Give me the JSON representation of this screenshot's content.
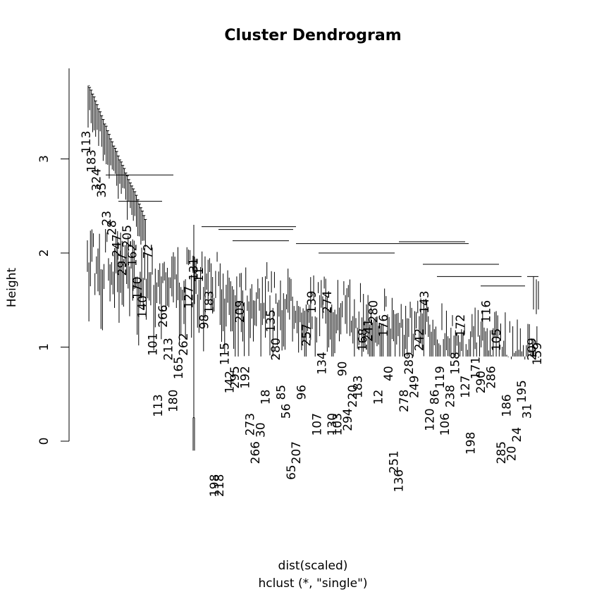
{
  "chart_data": {
    "type": "dendrogram",
    "title": "Cluster Dendrogram",
    "ylabel": "Height",
    "xlabel": "dist(scaled)",
    "sublabel": "hclust (*, \"single\")",
    "ylim": [
      0,
      3.8
    ],
    "yticks": [
      0,
      1,
      2,
      3
    ],
    "leaf_count": 300,
    "lowest_merge": {
      "label": "198",
      "pair_label": "218",
      "height": 0.25
    },
    "leaf_labels": [
      {
        "text": "113",
        "height": 3.3
      },
      {
        "text": "183",
        "height": 3.1
      },
      {
        "text": "324",
        "height": 2.9
      },
      {
        "text": "35",
        "height": 2.75
      },
      {
        "text": "23",
        "height": 2.45
      },
      {
        "text": "28",
        "height": 2.35
      },
      {
        "text": "247",
        "height": 2.2
      },
      {
        "text": "297",
        "height": 2.0
      },
      {
        "text": "205",
        "height": 2.3
      },
      {
        "text": "162",
        "height": 2.1
      },
      {
        "text": "170",
        "height": 1.75
      },
      {
        "text": "140",
        "height": 1.55
      },
      {
        "text": "72",
        "height": 2.1
      },
      {
        "text": "101",
        "height": 1.15
      },
      {
        "text": "113",
        "height": 0.5
      },
      {
        "text": "266",
        "height": 1.45
      },
      {
        "text": "213",
        "height": 1.1
      },
      {
        "text": "180",
        "height": 0.55
      },
      {
        "text": "165",
        "height": 0.9
      },
      {
        "text": "262",
        "height": 1.15
      },
      {
        "text": "127",
        "height": 1.65
      },
      {
        "text": "131",
        "height": 1.95
      },
      {
        "text": "11",
        "height": 1.85
      },
      {
        "text": "98",
        "height": 1.35
      },
      {
        "text": "183",
        "height": 1.6
      },
      {
        "text": "198",
        "height": -0.35
      },
      {
        "text": "218",
        "height": -0.35
      },
      {
        "text": "115",
        "height": 1.05
      },
      {
        "text": "142",
        "height": 0.75
      },
      {
        "text": "295",
        "height": 0.8
      },
      {
        "text": "209",
        "height": 1.5
      },
      {
        "text": "192",
        "height": 0.8
      },
      {
        "text": "273",
        "height": 0.3
      },
      {
        "text": "266",
        "height": 0.0
      },
      {
        "text": "30",
        "height": 0.2
      },
      {
        "text": "18",
        "height": 0.55
      },
      {
        "text": "135",
        "height": 1.4
      },
      {
        "text": "280",
        "height": 1.1
      },
      {
        "text": "85",
        "height": 0.6
      },
      {
        "text": "56",
        "height": 0.4
      },
      {
        "text": "65",
        "height": -0.25
      },
      {
        "text": "207",
        "height": 0.0
      },
      {
        "text": "96",
        "height": 0.6
      },
      {
        "text": "257",
        "height": 1.25
      },
      {
        "text": "139",
        "height": 1.6
      },
      {
        "text": "107",
        "height": 0.3
      },
      {
        "text": "134",
        "height": 0.95
      },
      {
        "text": "274",
        "height": 1.6
      },
      {
        "text": "130",
        "height": 0.3
      },
      {
        "text": "103",
        "height": 0.3
      },
      {
        "text": "90",
        "height": 0.85
      },
      {
        "text": "294",
        "height": 0.35
      },
      {
        "text": "220",
        "height": 0.6
      },
      {
        "text": "183",
        "height": 0.7
      },
      {
        "text": "168",
        "height": 1.2
      },
      {
        "text": "241",
        "height": 1.3
      },
      {
        "text": "280",
        "height": 1.5
      },
      {
        "text": "12",
        "height": 0.55
      },
      {
        "text": "176",
        "height": 1.35
      },
      {
        "text": "40",
        "height": 0.8
      },
      {
        "text": "251",
        "height": -0.1
      },
      {
        "text": "136",
        "height": -0.3
      },
      {
        "text": "278",
        "height": 0.55
      },
      {
        "text": "289",
        "height": 0.95
      },
      {
        "text": "249",
        "height": 0.7
      },
      {
        "text": "242",
        "height": 1.2
      },
      {
        "text": "143",
        "height": 1.6
      },
      {
        "text": "120",
        "height": 0.35
      },
      {
        "text": "86",
        "height": 0.55
      },
      {
        "text": "119",
        "height": 0.8
      },
      {
        "text": "106",
        "height": 0.3
      },
      {
        "text": "238",
        "height": 0.6
      },
      {
        "text": "158",
        "height": 0.95
      },
      {
        "text": "172",
        "height": 1.35
      },
      {
        "text": "127",
        "height": 0.7
      },
      {
        "text": "198",
        "height": 0.1
      },
      {
        "text": "171",
        "height": 0.9
      },
      {
        "text": "290",
        "height": 0.75
      },
      {
        "text": "116",
        "height": 1.5
      },
      {
        "text": "286",
        "height": 0.8
      },
      {
        "text": "105",
        "height": 1.2
      },
      {
        "text": "285",
        "height": 0.0
      },
      {
        "text": "186",
        "height": 0.5
      },
      {
        "text": "20",
        "height": -0.05
      },
      {
        "text": "24",
        "height": 0.15
      },
      {
        "text": "195",
        "height": 0.65
      },
      {
        "text": "31",
        "height": 0.4
      },
      {
        "text": "209",
        "height": 1.1
      },
      {
        "text": "159",
        "height": 1.05
      }
    ]
  }
}
